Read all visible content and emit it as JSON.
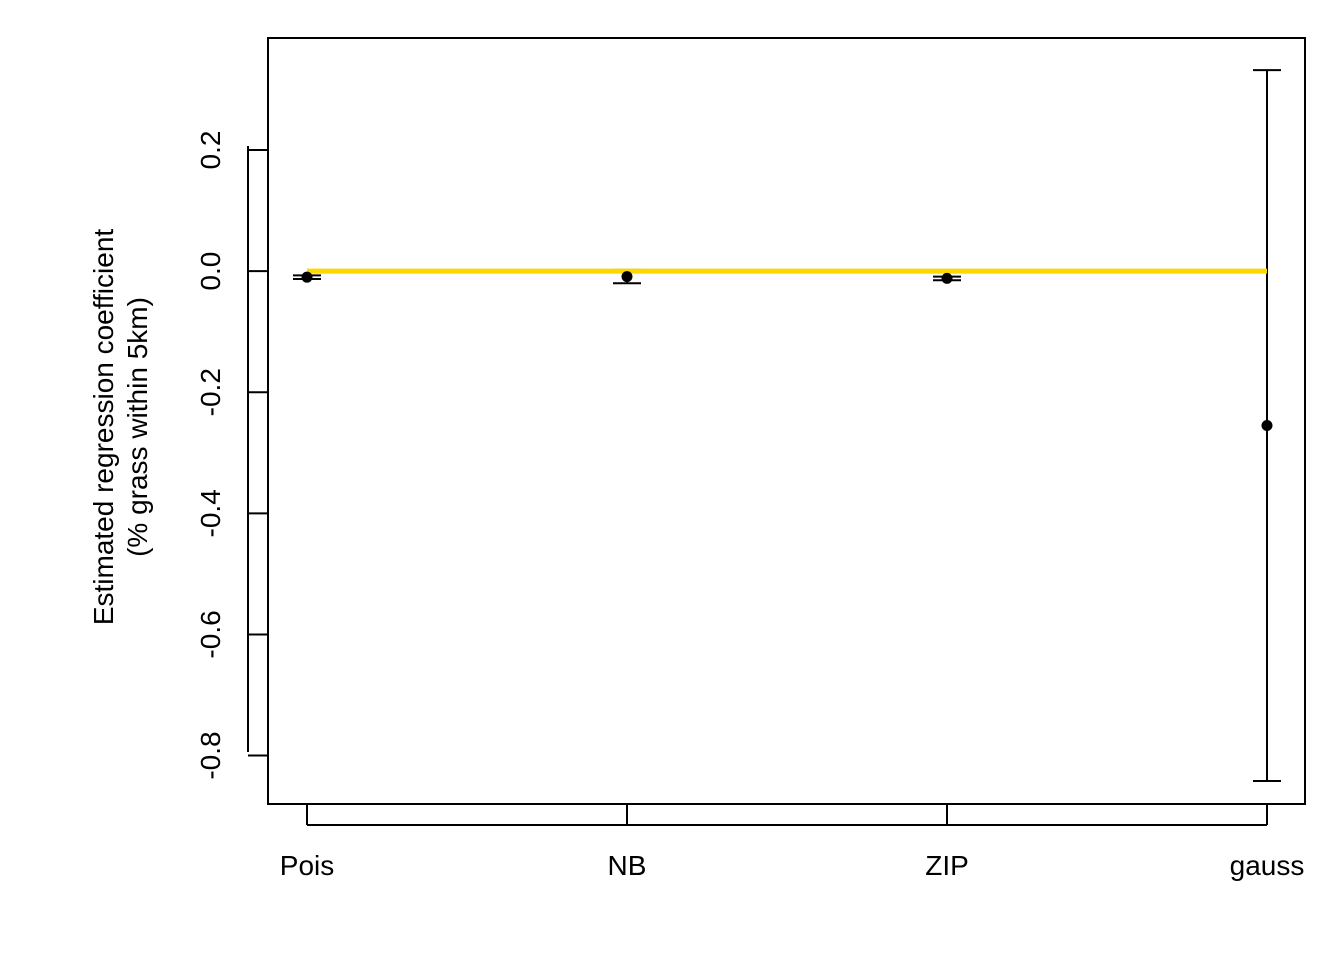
{
  "chart_data": {
    "type": "scatter",
    "title": "",
    "xlabel": "",
    "ylabel": [
      "Estimated regression coefficient",
      "(% grass within 5km)"
    ],
    "categories": [
      "Pois",
      "NB",
      "ZIP",
      "gauss"
    ],
    "ylim": [
      -0.88,
      0.385
    ],
    "yticks": [
      -0.8,
      -0.6,
      -0.4,
      -0.2,
      0.0,
      0.2
    ],
    "ytick_labels": [
      "-0.8",
      "-0.6",
      "-0.4",
      "-0.2",
      "0.0",
      "0.2"
    ],
    "grid": false,
    "series": [
      {
        "estimates": [
          -0.01,
          -0.009,
          -0.012,
          -0.255
        ],
        "lower": [
          -0.013,
          -0.02,
          -0.015,
          -0.842
        ],
        "upper": [
          -0.007,
          0.002,
          -0.009,
          0.332
        ]
      }
    ],
    "reference_line": {
      "y": 0.0,
      "from_category": "Pois",
      "to_category": "gauss",
      "color": "#FFD700"
    },
    "colors": {
      "points": "#000000",
      "error_bars": "#000000",
      "axis": "#000000"
    }
  }
}
